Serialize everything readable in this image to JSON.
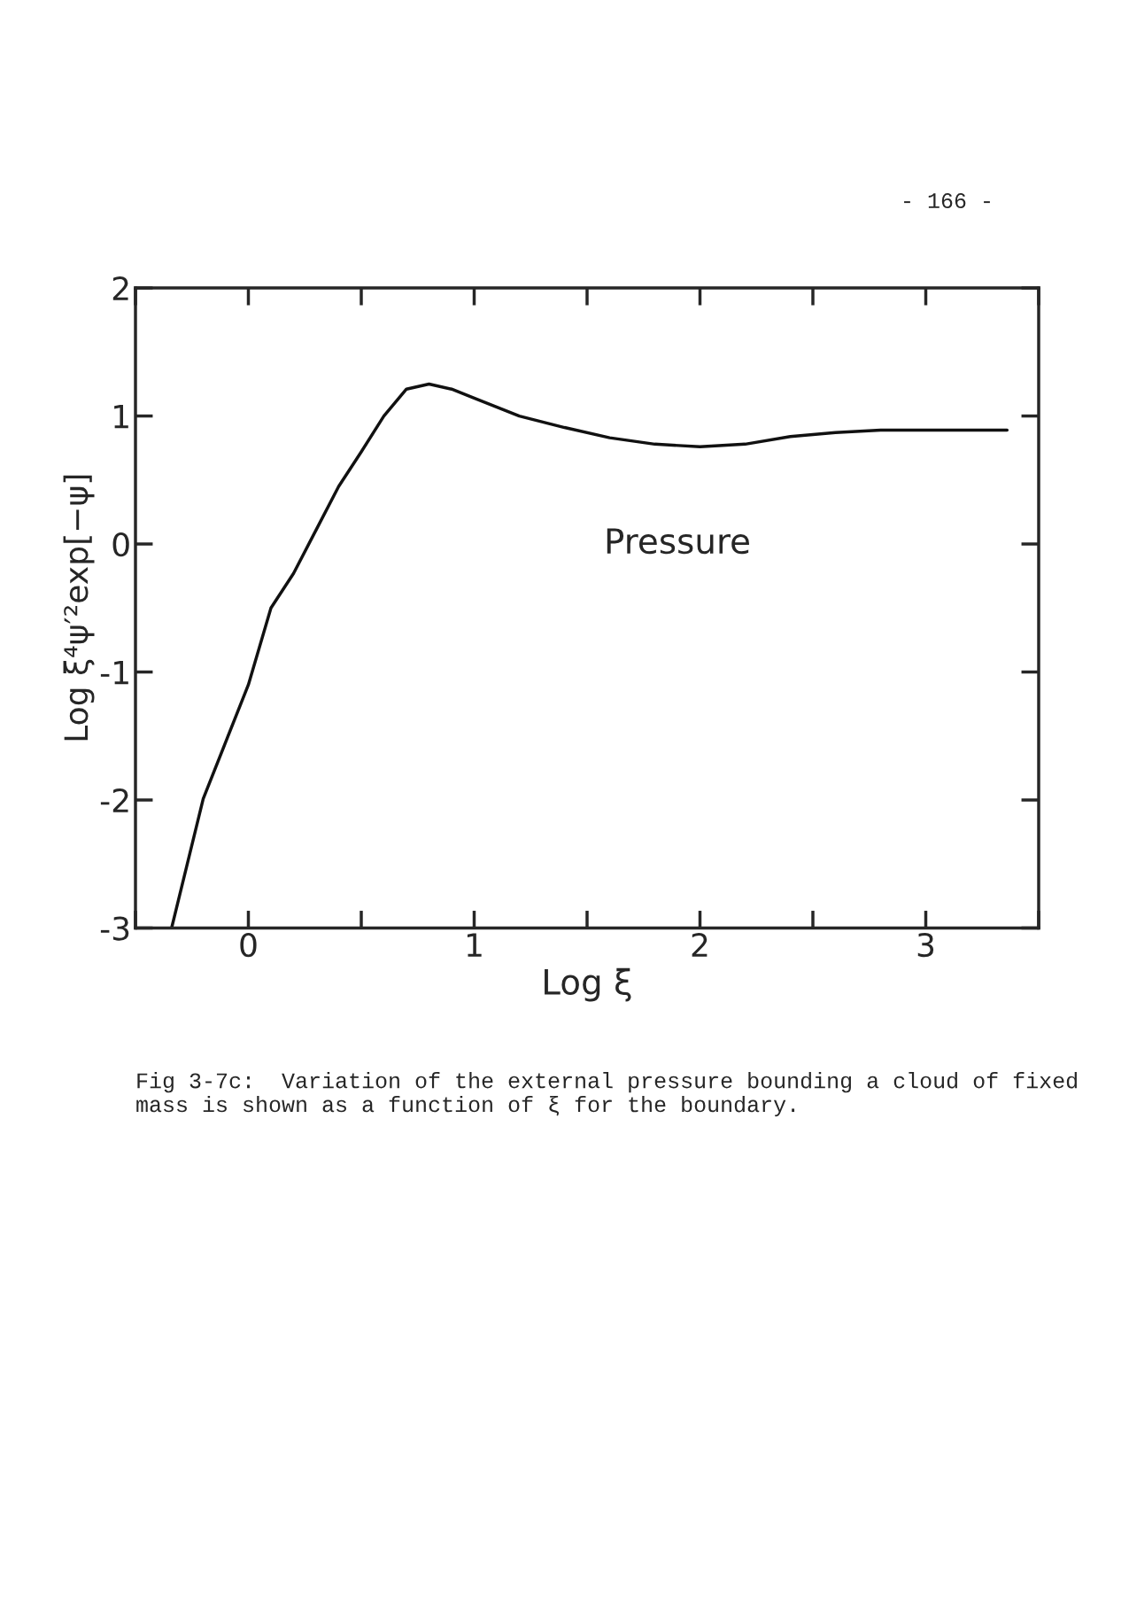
{
  "chart_data": {
    "type": "line",
    "xlabel": "Log ξ",
    "ylabel": "Log ξ⁴ψ′²exp[−ψ]",
    "x": [
      -0.34,
      -0.2,
      0,
      0.1,
      0.2,
      0.3,
      0.4,
      0.5,
      0.6,
      0.7,
      0.8,
      0.9,
      1.0,
      1.2,
      1.4,
      1.6,
      1.8,
      2.0,
      2.2,
      2.4,
      2.6,
      2.8,
      3.0,
      3.2,
      3.36
    ],
    "series": [
      {
        "color": "#111111",
        "values": [
          -3.0,
          -1.99,
          -1.1,
          -0.5,
          -0.23,
          0.11,
          0.45,
          0.72,
          1.0,
          1.21,
          1.25,
          1.21,
          1.14,
          1.0,
          0.91,
          0.83,
          0.78,
          0.76,
          0.78,
          0.84,
          0.87,
          0.89,
          0.89,
          0.89,
          0.89
        ]
      }
    ],
    "xlim": [
      -0.5,
      3.5
    ],
    "xticks": [
      0,
      1,
      2,
      3
    ],
    "ylim": [
      -3,
      2
    ],
    "yticks": [
      -3,
      -2,
      -1,
      0,
      1,
      2
    ],
    "grid": false,
    "legend": false,
    "annotations": [
      "- 166 -",
      "Pressure",
      "Fig 3-7c:  Variation of the external pressure bounding a cloud of fixed mass is shown as a function of ξ for the boundary."
    ]
  }
}
